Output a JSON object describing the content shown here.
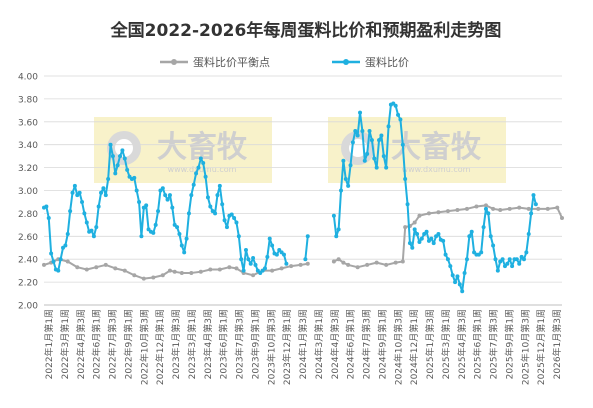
{
  "chart_data": {
    "type": "line",
    "title": "全国2022-2026年每周蛋料比价和预期盈利走势图",
    "xlabel": "",
    "ylabel": "",
    "ylim": [
      2.0,
      4.0
    ],
    "yticks": [
      "4.00",
      "3.80",
      "3.60",
      "3.40",
      "3.20",
      "3.00",
      "2.80",
      "2.60",
      "2.40",
      "2.20",
      "2.00"
    ],
    "grid": true,
    "legend": "top-center",
    "watermark": {
      "brand": "大畜牧",
      "site": "www.dxumu.com"
    },
    "x_tick_labels": [
      "2022年1月第1周",
      "2022年3月第1周",
      "2022年4月第3周",
      "2022年6月第1周",
      "2022年7月第3周",
      "2022年9月第1周",
      "2022年10月第3周",
      "2022年12月第1周",
      "2023年1月第3周",
      "2023年3月第1周",
      "2023年4月第3周",
      "2023年6月第1周",
      "2023年7月第3周",
      "2023年9月第1周",
      "2023年10月第3周",
      "2023年12月第1周",
      "2024年1月第3周",
      "2024年3月第1周",
      "2024年4月第3周",
      "2024年6月第1周",
      "2024年7月第3周",
      "2024年9月第1周",
      "2024年10月第3周",
      "2024年12月第1周",
      "2025年1月第3周",
      "2025年3月第1周",
      "2025年4月第3周",
      "2025年6月第1周",
      "2025年7月第3周",
      "2025年9月第1周",
      "2025年10月第3周",
      "2025年12月第1周",
      "2026年1月第3周"
    ],
    "x_tick_labels_rendered": [
      "2022年1月第1周",
      "2022年3月第1周",
      "2022年4月第3周",
      "2022年6月第1周",
      "2022年7月第3周",
      "2022年9月第1周",
      "2022年10月第3周",
      "2022年12月第1周",
      "2023年1月第3周",
      "2023年3月第1周",
      "2023年4月第3周",
      "2023年6月第1周",
      "2023年7月第3周",
      "2023年9月第1周",
      "2023年10月第3周",
      "2023年12月第1周",
      "2024年1月第3周",
      "2024年3月第1周",
      "2024年4月第3周",
      "2024年6月第1周",
      "2024年7月第3周",
      "2024年9月第1周",
      "2024年10月第3周",
      "2024年12月第1周",
      "2025年1月第3周",
      "2025年3月第1周",
      "2025年4月第3周",
      "2025年6月第1周",
      "2025年7月第3周",
      "2025年9月第1周",
      "2025年10月第3周",
      "2025年12月第1周",
      "2026年1月第3周"
    ],
    "series": [
      {
        "name": "蛋料比价平衡点",
        "color": "#a6a6a6",
        "segments": [
          [
            [
              0,
              2.35
            ],
            [
              3,
              2.37
            ],
            [
              6,
              2.4
            ],
            [
              10,
              2.38
            ],
            [
              14,
              2.33
            ],
            [
              18,
              2.31
            ],
            [
              22,
              2.33
            ],
            [
              26,
              2.35
            ],
            [
              30,
              2.32
            ],
            [
              34,
              2.3
            ],
            [
              38,
              2.26
            ],
            [
              42,
              2.23
            ],
            [
              46,
              2.24
            ],
            [
              50,
              2.26
            ],
            [
              53,
              2.3
            ],
            [
              55,
              2.29
            ],
            [
              58,
              2.28
            ],
            [
              62,
              2.28
            ],
            [
              66,
              2.29
            ],
            [
              70,
              2.31
            ],
            [
              74,
              2.31
            ],
            [
              78,
              2.33
            ],
            [
              81,
              2.32
            ],
            [
              84,
              2.28
            ],
            [
              88,
              2.26
            ],
            [
              92,
              2.3
            ],
            [
              96,
              2.3
            ],
            [
              100,
              2.32
            ],
            [
              104,
              2.34
            ],
            [
              108,
              2.35
            ],
            [
              111,
              2.36
            ]
          ],
          [
            [
              122,
              2.38
            ],
            [
              124,
              2.4
            ],
            [
              126,
              2.37
            ],
            [
              128,
              2.35
            ],
            [
              132,
              2.33
            ],
            [
              136,
              2.35
            ],
            [
              140,
              2.37
            ],
            [
              144,
              2.35
            ],
            [
              148,
              2.37
            ],
            [
              151,
              2.38
            ],
            [
              152,
              2.68
            ],
            [
              154,
              2.69
            ],
            [
              156,
              2.72
            ],
            [
              158,
              2.78
            ],
            [
              162,
              2.8
            ],
            [
              166,
              2.81
            ],
            [
              170,
              2.82
            ],
            [
              174,
              2.83
            ],
            [
              178,
              2.84
            ],
            [
              182,
              2.86
            ],
            [
              186,
              2.87
            ],
            [
              189,
              2.84
            ],
            [
              192,
              2.83
            ],
            [
              196,
              2.84
            ],
            [
              200,
              2.85
            ],
            [
              204,
              2.84
            ],
            [
              208,
              2.84
            ],
            [
              212,
              2.84
            ],
            [
              216,
              2.85
            ],
            [
              218,
              2.76
            ]
          ]
        ]
      },
      {
        "name": "蛋料比价",
        "color": "#1fb0e0",
        "segments": [
          [
            [
              0,
              2.85
            ],
            [
              1,
              2.86
            ],
            [
              2,
              2.76
            ],
            [
              3,
              2.45
            ],
            [
              4,
              2.38
            ],
            [
              5,
              2.31
            ],
            [
              6,
              2.3
            ],
            [
              7,
              2.4
            ],
            [
              8,
              2.5
            ],
            [
              9,
              2.52
            ],
            [
              10,
              2.62
            ],
            [
              11,
              2.82
            ],
            [
              12,
              2.98
            ],
            [
              13,
              3.04
            ],
            [
              14,
              2.96
            ],
            [
              15,
              2.98
            ],
            [
              16,
              2.9
            ],
            [
              17,
              2.8
            ],
            [
              18,
              2.72
            ],
            [
              19,
              2.64
            ],
            [
              20,
              2.65
            ],
            [
              21,
              2.6
            ],
            [
              22,
              2.68
            ],
            [
              23,
              2.86
            ],
            [
              24,
              2.98
            ],
            [
              25,
              3.02
            ],
            [
              26,
              2.96
            ],
            [
              27,
              3.1
            ],
            [
              28,
              3.4
            ],
            [
              29,
              3.3
            ],
            [
              30,
              3.15
            ],
            [
              31,
              3.22
            ],
            [
              32,
              3.3
            ],
            [
              33,
              3.35
            ],
            [
              34,
              3.28
            ],
            [
              35,
              3.18
            ],
            [
              36,
              3.12
            ],
            [
              37,
              3.1
            ],
            [
              38,
              3.11
            ],
            [
              39,
              3.0
            ],
            [
              40,
              2.9
            ],
            [
              41,
              2.6
            ],
            [
              42,
              2.85
            ],
            [
              43,
              2.87
            ],
            [
              44,
              2.66
            ],
            [
              45,
              2.64
            ],
            [
              46,
              2.63
            ],
            [
              47,
              2.7
            ],
            [
              48,
              2.82
            ],
            [
              49,
              3.0
            ],
            [
              50,
              3.02
            ],
            [
              51,
              2.96
            ],
            [
              52,
              2.92
            ],
            [
              53,
              2.96
            ],
            [
              54,
              2.85
            ],
            [
              55,
              2.7
            ],
            [
              56,
              2.68
            ],
            [
              57,
              2.62
            ],
            [
              58,
              2.52
            ],
            [
              59,
              2.46
            ],
            [
              60,
              2.58
            ],
            [
              61,
              2.8
            ],
            [
              62,
              2.96
            ],
            [
              63,
              3.05
            ],
            [
              64,
              3.15
            ],
            [
              65,
              3.2
            ],
            [
              66,
              3.28
            ],
            [
              67,
              3.24
            ],
            [
              68,
              3.12
            ],
            [
              69,
              2.94
            ],
            [
              70,
              2.86
            ],
            [
              71,
              2.82
            ],
            [
              72,
              2.8
            ],
            [
              73,
              2.96
            ],
            [
              74,
              3.04
            ],
            [
              75,
              2.88
            ],
            [
              76,
              2.74
            ],
            [
              77,
              2.68
            ],
            [
              78,
              2.78
            ],
            [
              79,
              2.79
            ],
            [
              80,
              2.76
            ],
            [
              81,
              2.72
            ],
            [
              82,
              2.6
            ],
            [
              83,
              2.4
            ],
            [
              84,
              2.3
            ],
            [
              85,
              2.48
            ],
            [
              86,
              2.4
            ],
            [
              87,
              2.36
            ],
            [
              88,
              2.41
            ],
            [
              89,
              2.35
            ],
            [
              90,
              2.3
            ],
            [
              91,
              2.28
            ],
            [
              92,
              2.3
            ],
            [
              93,
              2.32
            ],
            [
              94,
              2.42
            ],
            [
              95,
              2.58
            ],
            [
              96,
              2.52
            ],
            [
              97,
              2.45
            ],
            [
              98,
              2.44
            ],
            [
              99,
              2.48
            ],
            [
              100,
              2.46
            ],
            [
              101,
              2.44
            ],
            [
              102,
              2.36
            ]
          ],
          [
            [
              110,
              2.4
            ],
            [
              111,
              2.6
            ]
          ],
          [
            [
              122,
              2.78
            ],
            [
              123,
              2.6
            ],
            [
              124,
              2.66
            ],
            [
              125,
              3.0
            ],
            [
              126,
              3.26
            ],
            [
              127,
              3.1
            ],
            [
              128,
              3.04
            ],
            [
              129,
              3.22
            ],
            [
              130,
              3.42
            ],
            [
              131,
              3.52
            ],
            [
              132,
              3.48
            ],
            [
              133,
              3.68
            ],
            [
              134,
              3.52
            ],
            [
              135,
              3.26
            ],
            [
              136,
              3.32
            ],
            [
              137,
              3.52
            ],
            [
              138,
              3.44
            ],
            [
              139,
              3.28
            ],
            [
              140,
              3.2
            ],
            [
              141,
              3.44
            ],
            [
              142,
              3.48
            ],
            [
              143,
              3.3
            ],
            [
              144,
              3.2
            ],
            [
              145,
              3.56
            ],
            [
              146,
              3.75
            ],
            [
              147,
              3.76
            ],
            [
              148,
              3.74
            ],
            [
              149,
              3.66
            ],
            [
              150,
              3.62
            ],
            [
              151,
              3.4
            ],
            [
              152,
              3.1
            ],
            [
              153,
              2.88
            ],
            [
              154,
              2.54
            ],
            [
              155,
              2.5
            ],
            [
              156,
              2.66
            ],
            [
              157,
              2.62
            ],
            [
              158,
              2.55
            ],
            [
              159,
              2.58
            ],
            [
              160,
              2.62
            ],
            [
              161,
              2.64
            ],
            [
              162,
              2.56
            ],
            [
              163,
              2.58
            ],
            [
              164,
              2.54
            ],
            [
              165,
              2.6
            ],
            [
              166,
              2.62
            ],
            [
              167,
              2.57
            ],
            [
              168,
              2.56
            ],
            [
              169,
              2.44
            ],
            [
              170,
              2.4
            ],
            [
              171,
              2.34
            ],
            [
              172,
              2.26
            ],
            [
              173,
              2.2
            ],
            [
              174,
              2.25
            ],
            [
              175,
              2.18
            ],
            [
              176,
              2.12
            ],
            [
              177,
              2.28
            ],
            [
              178,
              2.4
            ],
            [
              179,
              2.6
            ],
            [
              180,
              2.64
            ],
            [
              181,
              2.46
            ],
            [
              182,
              2.44
            ],
            [
              183,
              2.44
            ],
            [
              184,
              2.46
            ],
            [
              185,
              2.68
            ],
            [
              186,
              2.84
            ],
            [
              187,
              2.8
            ],
            [
              188,
              2.6
            ],
            [
              189,
              2.52
            ],
            [
              190,
              2.4
            ],
            [
              191,
              2.3
            ],
            [
              192,
              2.38
            ],
            [
              193,
              2.4
            ],
            [
              194,
              2.34
            ],
            [
              195,
              2.36
            ],
            [
              196,
              2.4
            ],
            [
              197,
              2.34
            ],
            [
              198,
              2.4
            ],
            [
              199,
              2.4
            ],
            [
              200,
              2.36
            ],
            [
              201,
              2.42
            ],
            [
              202,
              2.4
            ],
            [
              203,
              2.46
            ],
            [
              204,
              2.62
            ],
            [
              205,
              2.8
            ],
            [
              206,
              2.96
            ],
            [
              207,
              2.88
            ]
          ]
        ]
      }
    ]
  }
}
